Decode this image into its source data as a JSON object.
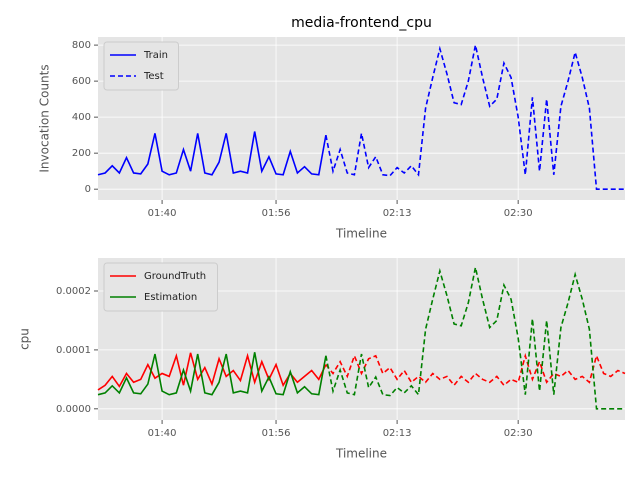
{
  "chart_data": [
    {
      "type": "line",
      "title": "media-frontend_cpu",
      "xlabel": "Timeline",
      "ylabel": "Invocation Counts",
      "x": [
        "01:31",
        "01:32",
        "01:33",
        "01:34",
        "01:35",
        "01:36",
        "01:37",
        "01:38",
        "01:39",
        "01:40",
        "01:41",
        "01:42",
        "01:43",
        "01:44",
        "01:45",
        "01:46",
        "01:47",
        "01:48",
        "01:49",
        "01:50",
        "01:51",
        "01:52",
        "01:53",
        "01:54",
        "01:55",
        "01:56",
        "01:57",
        "01:58",
        "01:59",
        "02:00",
        "02:01",
        "02:02",
        "02:03",
        "02:04",
        "02:05",
        "02:06",
        "02:07",
        "02:08",
        "02:09",
        "02:10",
        "02:11",
        "02:12",
        "02:13",
        "02:14",
        "02:15",
        "02:16",
        "02:17",
        "02:18",
        "02:19",
        "02:20",
        "02:21",
        "02:22",
        "02:23",
        "02:24",
        "02:25",
        "02:26",
        "02:27",
        "02:28",
        "02:29",
        "02:30",
        "02:31",
        "02:32",
        "02:33",
        "02:34",
        "02:35",
        "02:36",
        "02:37",
        "02:38",
        "02:39",
        "02:40",
        "02:41",
        "02:42",
        "02:43",
        "02:44",
        "02:45"
      ],
      "xlim": [
        "01:31",
        "02:45"
      ],
      "xticks": [
        "01:40",
        "01:56",
        "02:13",
        "02:30"
      ],
      "ylim": [
        -60,
        845
      ],
      "yticks": [
        0,
        200,
        400,
        600,
        800
      ],
      "grid": true,
      "legend": "upper left",
      "series": [
        {
          "name": "Train",
          "color": "#0000ff",
          "dash": false,
          "values": [
            80,
            90,
            130,
            90,
            175,
            90,
            85,
            140,
            310,
            100,
            80,
            90,
            220,
            100,
            310,
            90,
            80,
            150,
            310,
            90,
            100,
            90,
            320,
            100,
            180,
            85,
            80,
            210,
            90,
            125,
            85,
            80,
            300,
            null,
            null,
            null,
            null,
            null,
            null,
            null,
            null,
            null,
            null,
            null,
            null,
            null,
            null,
            null,
            null,
            null,
            null,
            null,
            null,
            null,
            null,
            null,
            null,
            null,
            null,
            null,
            null,
            null,
            null,
            null,
            null,
            null,
            null,
            null,
            null,
            null,
            null,
            null,
            null,
            null,
            null
          ]
        },
        {
          "name": "Test",
          "color": "#0000ff",
          "dash": true,
          "values": [
            null,
            null,
            null,
            null,
            null,
            null,
            null,
            null,
            null,
            null,
            null,
            null,
            null,
            null,
            null,
            null,
            null,
            null,
            null,
            null,
            null,
            null,
            null,
            null,
            null,
            null,
            null,
            null,
            null,
            null,
            null,
            null,
            300,
            100,
            220,
            90,
            80,
            310,
            120,
            180,
            80,
            75,
            120,
            90,
            130,
            80,
            450,
            620,
            780,
            640,
            480,
            470,
            600,
            800,
            620,
            460,
            500,
            700,
            620,
            400,
            80,
            510,
            100,
            500,
            80,
            460,
            600,
            760,
            620,
            450,
            0,
            0,
            0,
            0,
            0
          ]
        }
      ]
    },
    {
      "type": "line",
      "xlabel": "Timeline",
      "ylabel": "cpu",
      "x": [
        "01:31",
        "01:32",
        "01:33",
        "01:34",
        "01:35",
        "01:36",
        "01:37",
        "01:38",
        "01:39",
        "01:40",
        "01:41",
        "01:42",
        "01:43",
        "01:44",
        "01:45",
        "01:46",
        "01:47",
        "01:48",
        "01:49",
        "01:50",
        "01:51",
        "01:52",
        "01:53",
        "01:54",
        "01:55",
        "01:56",
        "01:57",
        "01:58",
        "01:59",
        "02:00",
        "02:01",
        "02:02",
        "02:03",
        "02:04",
        "02:05",
        "02:06",
        "02:07",
        "02:08",
        "02:09",
        "02:10",
        "02:11",
        "02:12",
        "02:13",
        "02:14",
        "02:15",
        "02:16",
        "02:17",
        "02:18",
        "02:19",
        "02:20",
        "02:21",
        "02:22",
        "02:23",
        "02:24",
        "02:25",
        "02:26",
        "02:27",
        "02:28",
        "02:29",
        "02:30",
        "02:31",
        "02:32",
        "02:33",
        "02:34",
        "02:35",
        "02:36",
        "02:37",
        "02:38",
        "02:39",
        "02:40",
        "02:41",
        "02:42",
        "02:43",
        "02:44",
        "02:45"
      ],
      "xlim": [
        "01:31",
        "02:45"
      ],
      "xticks": [
        "01:40",
        "01:56",
        "02:13",
        "02:30"
      ],
      "ylim": [
        -1.9e-05,
        0.000256
      ],
      "yticks": [
        {
          "value": 0,
          "label": "0.0000"
        },
        {
          "value": 0.0001,
          "label": "0.0001"
        },
        {
          "value": 0.0002,
          "label": "0.0002"
        }
      ],
      "grid": true,
      "legend": "upper left",
      "series": [
        {
          "name": "GroundTruth",
          "color": "#ff0000",
          "dash": false,
          "values": [
            3.2e-05,
            4e-05,
            5.5e-05,
            3.8e-05,
            6e-05,
            4.5e-05,
            5e-05,
            7.5e-05,
            5.2e-05,
            6e-05,
            5.5e-05,
            9e-05,
            4e-05,
            9.5e-05,
            5e-05,
            7e-05,
            4.2e-05,
            8.5e-05,
            5.5e-05,
            6.5e-05,
            4.8e-05,
            9e-05,
            4.5e-05,
            8e-05,
            5e-05,
            7.5e-05,
            4e-05,
            6e-05,
            4.5e-05,
            5.5e-05,
            6.5e-05,
            5e-05,
            7.5e-05,
            null,
            null,
            null,
            null,
            null,
            null,
            null,
            null,
            null,
            null,
            null,
            null,
            null,
            null,
            null,
            null,
            null,
            null,
            null,
            null,
            null,
            null,
            null,
            null,
            null,
            null,
            null,
            null,
            null,
            null,
            null,
            null,
            null,
            null,
            null,
            null,
            null,
            null,
            null,
            null,
            null,
            null
          ]
        },
        {
          "name": "Estimation",
          "color": "#008000",
          "dash": false,
          "values": [
            2.4e-05,
            2.7e-05,
            3.9e-05,
            2.7e-05,
            5.25e-05,
            2.7e-05,
            2.55e-05,
            4.2e-05,
            9.3e-05,
            3e-05,
            2.4e-05,
            2.7e-05,
            6.6e-05,
            3e-05,
            9.3e-05,
            2.7e-05,
            2.4e-05,
            4.5e-05,
            9.3e-05,
            2.7e-05,
            3e-05,
            2.7e-05,
            9.6e-05,
            3e-05,
            5.4e-05,
            2.55e-05,
            2.4e-05,
            6.3e-05,
            2.7e-05,
            3.75e-05,
            2.55e-05,
            2.4e-05,
            9e-05,
            null,
            null,
            null,
            null,
            null,
            null,
            null,
            null,
            null,
            null,
            null,
            null,
            null,
            null,
            null,
            null,
            null,
            null,
            null,
            null,
            null,
            null,
            null,
            null,
            null,
            null,
            null,
            null,
            null,
            null,
            null,
            null,
            null,
            null,
            null,
            null,
            null,
            null,
            null,
            null,
            null,
            null
          ]
        },
        {
          "color": "#ff0000",
          "dash": true,
          "values": [
            null,
            null,
            null,
            null,
            null,
            null,
            null,
            null,
            null,
            null,
            null,
            null,
            null,
            null,
            null,
            null,
            null,
            null,
            null,
            null,
            null,
            null,
            null,
            null,
            null,
            null,
            null,
            null,
            null,
            null,
            null,
            null,
            7.5e-05,
            6e-05,
            8e-05,
            5.5e-05,
            9e-05,
            6e-05,
            8.5e-05,
            9e-05,
            6e-05,
            7e-05,
            5e-05,
            6.5e-05,
            4.5e-05,
            5.5e-05,
            4.5e-05,
            6e-05,
            5e-05,
            5.5e-05,
            4e-05,
            5.5e-05,
            4.5e-05,
            6e-05,
            5e-05,
            4.5e-05,
            5.5e-05,
            4e-05,
            5e-05,
            4.5e-05,
            9e-05,
            5e-05,
            8e-05,
            4.5e-05,
            6e-05,
            5.5e-05,
            6.5e-05,
            5e-05,
            5.5e-05,
            4.5e-05,
            9e-05,
            6e-05,
            5.5e-05,
            6.5e-05,
            6e-05
          ]
        },
        {
          "color": "#008000",
          "dash": true,
          "values": [
            null,
            null,
            null,
            null,
            null,
            null,
            null,
            null,
            null,
            null,
            null,
            null,
            null,
            null,
            null,
            null,
            null,
            null,
            null,
            null,
            null,
            null,
            null,
            null,
            null,
            null,
            null,
            null,
            null,
            null,
            null,
            null,
            9e-05,
            3e-05,
            6.6e-05,
            2.7e-05,
            2.4e-05,
            9.3e-05,
            3.6e-05,
            5.4e-05,
            2.4e-05,
            2.25e-05,
            3.6e-05,
            2.7e-05,
            3.9e-05,
            2.4e-05,
            0.000135,
            0.000186,
            0.000234,
            0.000192,
            0.000144,
            0.000141,
            0.00018,
            0.00024,
            0.000186,
            0.000138,
            0.00015,
            0.00021,
            0.000186,
            0.00012,
            2.4e-05,
            0.000153,
            3e-05,
            0.00015,
            2.4e-05,
            0.000138,
            0.00018,
            0.000228,
            0.000186,
            0.000135,
            0,
            0,
            0,
            0,
            0
          ]
        }
      ]
    }
  ]
}
